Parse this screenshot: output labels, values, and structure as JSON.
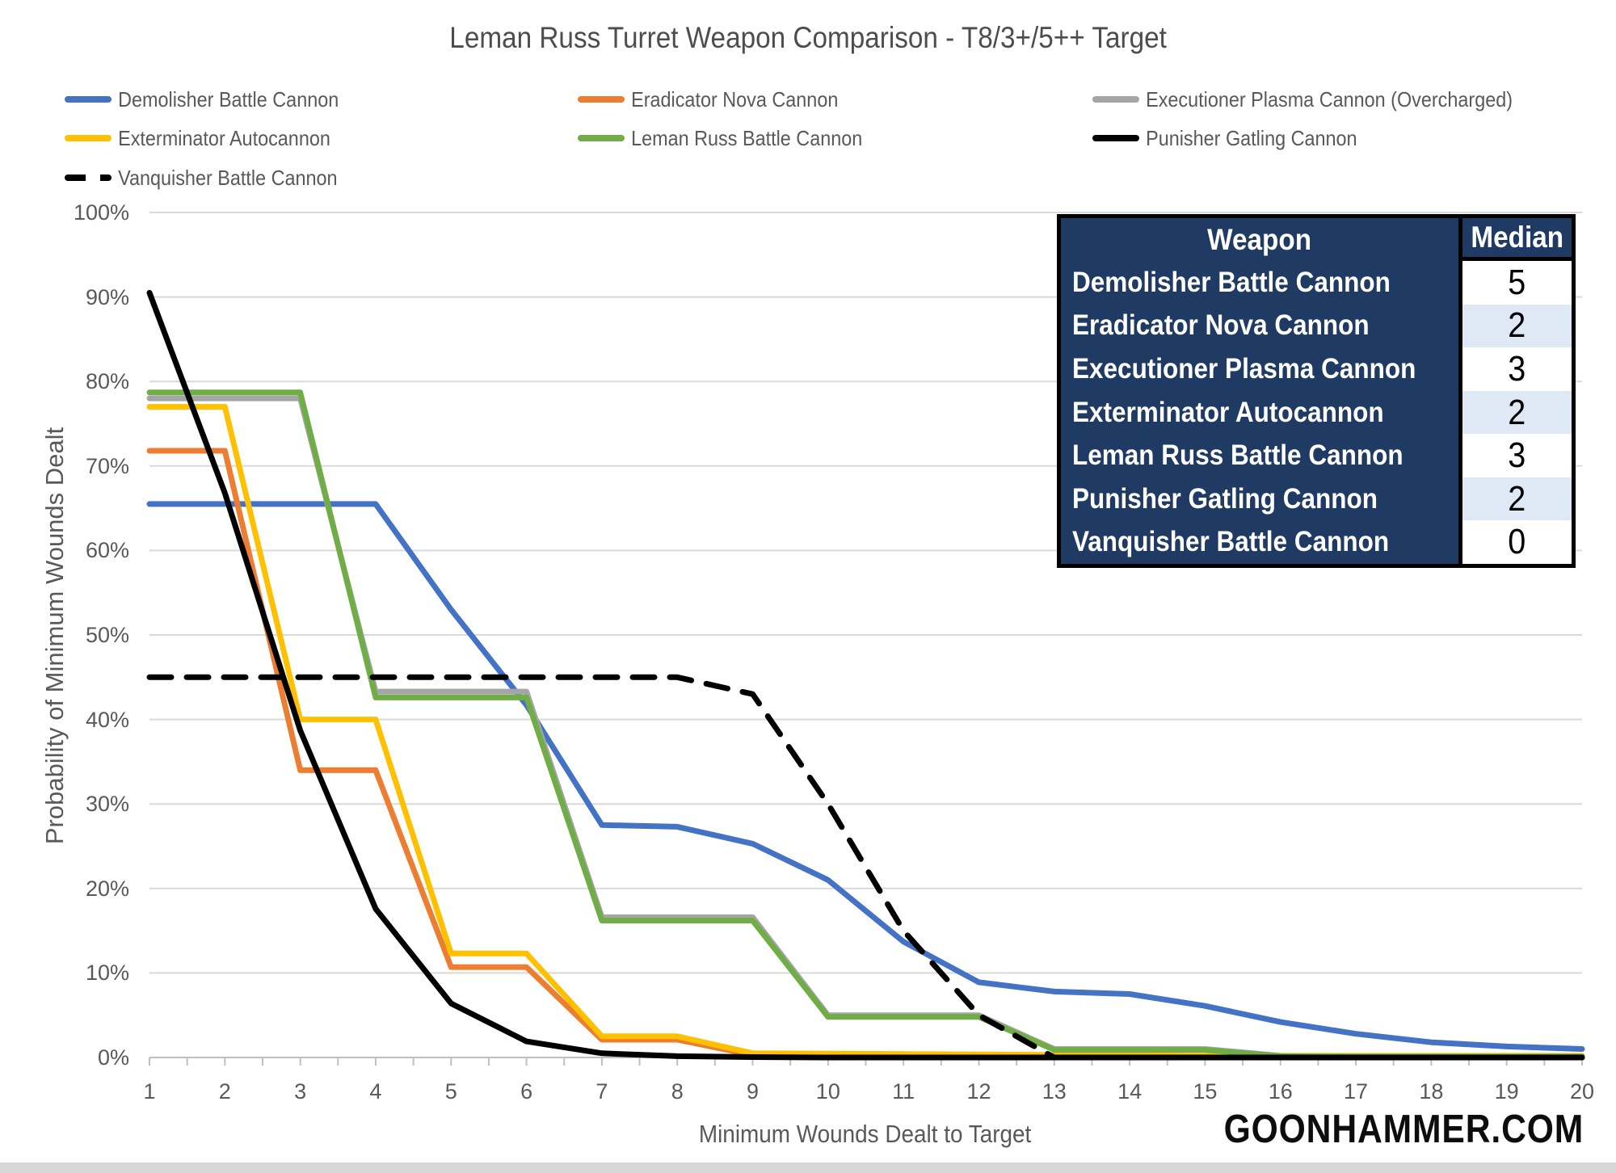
{
  "title": "Leman Russ Turret Weapon Comparison - T8/3+/5++ Target",
  "watermark": "GOONHAMMER.COM",
  "axes": {
    "y_title": "Probability of Minimum Wounds Dealt",
    "x_title": "Minimum Wounds Dealt to Target",
    "y_tick_labels": [
      "100%",
      "90%",
      "80%",
      "70%",
      "60%",
      "50%",
      "40%",
      "30%",
      "20%",
      "10%",
      "0%"
    ],
    "x_tick_labels": [
      "1",
      "2",
      "3",
      "4",
      "5",
      "6",
      "7",
      "8",
      "9",
      "10",
      "11",
      "12",
      "13",
      "14",
      "15",
      "16",
      "17",
      "18",
      "19",
      "20"
    ]
  },
  "legend": [
    {
      "label": "Demolisher Battle Cannon",
      "color": "#4472C4",
      "dashed": false
    },
    {
      "label": "Eradicator Nova Cannon",
      "color": "#ED7D31",
      "dashed": false
    },
    {
      "label": "Executioner Plasma Cannon (Overcharged)",
      "color": "#A5A5A5",
      "dashed": false
    },
    {
      "label": "Exterminator Autocannon",
      "color": "#FFC000",
      "dashed": false
    },
    {
      "label": "Leman Russ Battle Cannon",
      "color": "#70AD47",
      "dashed": false
    },
    {
      "label": "Punisher Gatling Cannon",
      "color": "#000000",
      "dashed": false
    },
    {
      "label": "Vanquisher Battle Cannon",
      "color": "#000000",
      "dashed": true
    }
  ],
  "table": {
    "headers": [
      "Weapon",
      "Median"
    ],
    "rows": [
      {
        "weapon": "Demolisher Battle Cannon",
        "median": "5"
      },
      {
        "weapon": "Eradicator Nova Cannon",
        "median": "2"
      },
      {
        "weapon": "Executioner Plasma Cannon",
        "median": "3"
      },
      {
        "weapon": "Exterminator Autocannon",
        "median": "2"
      },
      {
        "weapon": "Leman Russ Battle Cannon",
        "median": "3"
      },
      {
        "weapon": "Punisher Gatling Cannon",
        "median": "2"
      },
      {
        "weapon": "Vanquisher Battle Cannon",
        "median": "0"
      }
    ],
    "colors": {
      "header_bg": "#1F3A63",
      "header_text": "#FFFFFF",
      "stripe_bg": "#DEE9F5",
      "row_bg": "#FFFFFF",
      "value_text": "#000000",
      "border": "#000000"
    }
  },
  "chart_data": {
    "type": "line",
    "x": [
      1,
      2,
      3,
      4,
      5,
      6,
      7,
      8,
      9,
      10,
      11,
      12,
      13,
      14,
      15,
      16,
      17,
      18,
      19,
      20
    ],
    "title": "Leman Russ Turret Weapon Comparison - T8/3+/5++ Target",
    "xlabel": "Minimum Wounds Dealt to Target",
    "ylabel": "Probability of Minimum Wounds Dealt",
    "ylim": [
      0,
      100
    ],
    "y_tick_step": 10,
    "grid": "horizontal",
    "legend_position": "top-left",
    "series": [
      {
        "name": "Demolisher Battle Cannon",
        "color": "#4472C4",
        "dashed": false,
        "values": [
          65.5,
          65.5,
          65.5,
          65.5,
          53,
          41.7,
          27.5,
          27.3,
          25.3,
          21,
          13.7,
          8.9,
          7.8,
          7.5,
          6.1,
          4.2,
          2.8,
          1.8,
          1.3,
          1.0
        ]
      },
      {
        "name": "Eradicator Nova Cannon",
        "color": "#ED7D31",
        "dashed": false,
        "values": [
          71.8,
          71.8,
          34,
          34,
          10.7,
          10.7,
          2.1,
          2.1,
          0.3,
          0.15,
          0.1,
          0.1,
          0.1,
          0.1,
          0.1,
          0.1,
          0.1,
          0.1,
          0.1,
          0.1
        ]
      },
      {
        "name": "Executioner Plasma Cannon (Overcharged)",
        "color": "#A5A5A5",
        "dashed": false,
        "values": [
          78,
          78,
          78,
          43.3,
          43.3,
          43.3,
          16.6,
          16.6,
          16.6,
          5.0,
          5.0,
          5.0,
          1.0,
          1.0,
          1.0,
          0.2,
          0.15,
          0.15,
          0.15,
          0.15
        ]
      },
      {
        "name": "Exterminator Autocannon",
        "color": "#FFC000",
        "dashed": false,
        "values": [
          77,
          77,
          40,
          40,
          12.3,
          12.3,
          2.5,
          2.5,
          0.5,
          0.45,
          0.4,
          0.35,
          0.3,
          0.25,
          0.2,
          0.2,
          0.2,
          0.2,
          0.2,
          0.2
        ]
      },
      {
        "name": "Leman Russ Battle Cannon",
        "color": "#70AD47",
        "dashed": false,
        "values": [
          78.7,
          78.7,
          78.7,
          42.6,
          42.6,
          42.6,
          16.2,
          16.2,
          16.2,
          4.8,
          4.8,
          4.8,
          0.9,
          0.9,
          0.9,
          0.15,
          0.1,
          0.1,
          0.1,
          0.1
        ]
      },
      {
        "name": "Punisher Gatling Cannon",
        "color": "#000000",
        "dashed": false,
        "values": [
          90.5,
          66.8,
          38.7,
          17.6,
          6.4,
          1.9,
          0.5,
          0.15,
          0.05,
          0,
          0,
          0,
          0,
          0,
          0,
          0,
          0,
          0,
          0,
          0
        ]
      },
      {
        "name": "Vanquisher Battle Cannon",
        "color": "#000000",
        "dashed": true,
        "values": [
          45,
          45,
          45,
          45,
          45,
          45,
          45,
          45,
          43,
          30,
          15,
          5,
          0,
          0,
          0,
          0,
          0,
          0,
          0,
          0
        ]
      }
    ]
  }
}
